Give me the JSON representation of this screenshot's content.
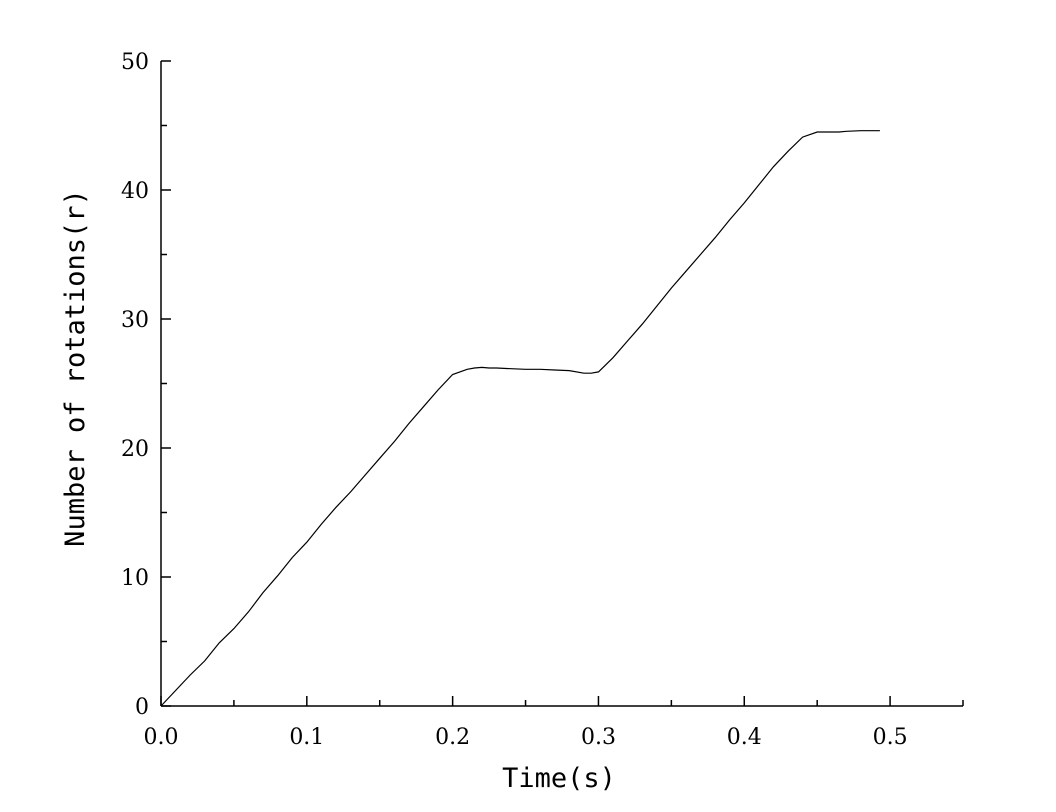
{
  "chart_data": {
    "type": "line",
    "title": "",
    "xlabel": "Time(s)",
    "ylabel": "Number of rotations(r)",
    "xlim": [
      0,
      0.55
    ],
    "ylim": [
      0,
      50
    ],
    "x_ticks": [
      "0.0",
      "0.1",
      "0.2",
      "0.3",
      "0.4",
      "0.5"
    ],
    "x_tick_values": [
      0,
      0.1,
      0.2,
      0.3,
      0.4,
      0.5
    ],
    "y_ticks": [
      "0",
      "10",
      "20",
      "30",
      "40",
      "50"
    ],
    "y_tick_values": [
      0,
      10,
      20,
      30,
      40,
      50
    ],
    "y_minor_tick_values": [
      5,
      15,
      25,
      35,
      45
    ],
    "x_minor_tick_values": [
      0.05,
      0.15,
      0.25,
      0.35,
      0.45,
      0.55
    ],
    "grid": false,
    "legend": "none",
    "series": [
      {
        "x": [
          0,
          0.01,
          0.02,
          0.03,
          0.04,
          0.05,
          0.06,
          0.07,
          0.08,
          0.09,
          0.1,
          0.11,
          0.12,
          0.13,
          0.14,
          0.15,
          0.16,
          0.17,
          0.18,
          0.19,
          0.2,
          0.21,
          0.215,
          0.22,
          0.225,
          0.23,
          0.24,
          0.25,
          0.26,
          0.27,
          0.28,
          0.29,
          0.295,
          0.3,
          0.31,
          0.32,
          0.33,
          0.34,
          0.35,
          0.36,
          0.37,
          0.38,
          0.39,
          0.4,
          0.41,
          0.42,
          0.43,
          0.44,
          0.45,
          0.455,
          0.46,
          0.465,
          0.47,
          0.48,
          0.49,
          0.493
        ],
        "y": [
          0,
          1.2,
          2.4,
          3.5,
          4.9,
          6.0,
          7.3,
          8.8,
          10.1,
          11.5,
          12.7,
          14.1,
          15.4,
          16.6,
          17.9,
          19.2,
          20.5,
          21.9,
          23.2,
          24.5,
          25.7,
          26.1,
          26.2,
          26.25,
          26.2,
          26.2,
          26.15,
          26.1,
          26.1,
          26.05,
          26.0,
          25.8,
          25.8,
          25.9,
          27.0,
          28.3,
          29.6,
          31.0,
          32.4,
          33.7,
          35.0,
          36.3,
          37.7,
          39.0,
          40.4,
          41.8,
          43.0,
          44.1,
          44.5,
          44.5,
          44.5,
          44.5,
          44.55,
          44.6,
          44.6,
          44.6
        ]
      }
    ]
  }
}
